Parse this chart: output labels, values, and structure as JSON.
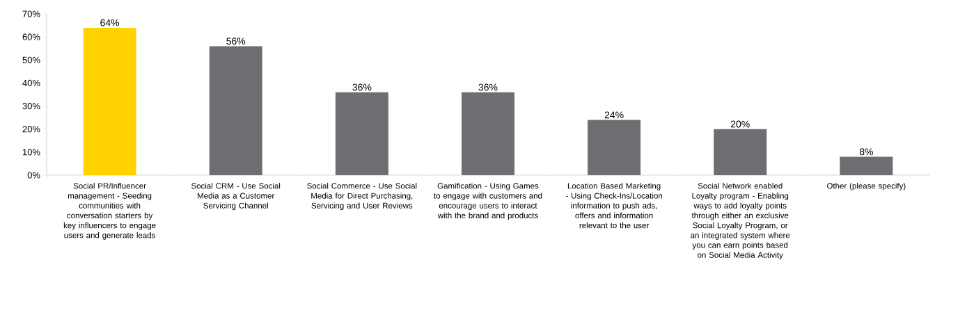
{
  "chart_data": {
    "type": "bar",
    "categories": [
      "Social PR/Influencer management - Seeding communities with conversation starters by key influencers to engage users and generate leads",
      "Social CRM - Use Social Media as a Customer Servicing Channel",
      "Social Commerce - Use Social Media for Direct Purchasing, Servicing and User Reviews",
      "Gamification - Using Games to engage with customers and encourage users to interact with the brand and products",
      "Location Based Marketing - Using Check-Ins/Location information to push ads, offers and information relevant to the user",
      "Social Network enabled Loyalty program - Enabling ways to add loyalty points through either an exclusive Social Loyalty Program, or an integrated system where you can earn points based on Social Media Activity",
      "Other (please specify)"
    ],
    "values": [
      64,
      56,
      36,
      36,
      24,
      20,
      8
    ],
    "colors": [
      "#ffd200",
      "#6d6e71",
      "#6d6e71",
      "#6d6e71",
      "#6d6e71",
      "#6d6e71",
      "#6d6e71"
    ],
    "value_labels": [
      "64%",
      "56%",
      "36%",
      "36%",
      "24%",
      "20%",
      "8%"
    ],
    "ylim": [
      0,
      70
    ],
    "yticks": [
      {
        "value": 0,
        "label": "0%"
      },
      {
        "value": 10,
        "label": "10%"
      },
      {
        "value": 20,
        "label": "20%"
      },
      {
        "value": 30,
        "label": "30%"
      },
      {
        "value": 40,
        "label": "40%"
      },
      {
        "value": 50,
        "label": "50%"
      },
      {
        "value": 60,
        "label": "60%"
      },
      {
        "value": 70,
        "label": "70%"
      }
    ],
    "grid": false
  }
}
